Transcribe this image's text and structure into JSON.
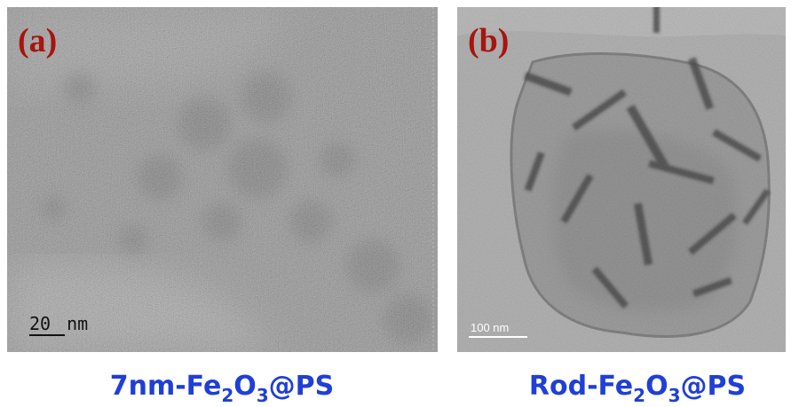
{
  "panels": [
    {
      "label": "(a)",
      "scale_bar": "20 nm",
      "caption": {
        "pre": "7nm-Fe",
        "sub1": "2",
        "mid": "O",
        "sub2": "3",
        "post": "@PS"
      }
    },
    {
      "label": "(b)",
      "scale_bar": "100 nm",
      "caption": {
        "pre": "Rod-Fe",
        "sub1": "2",
        "mid": "O",
        "sub2": "3",
        "post": "@PS"
      }
    }
  ]
}
